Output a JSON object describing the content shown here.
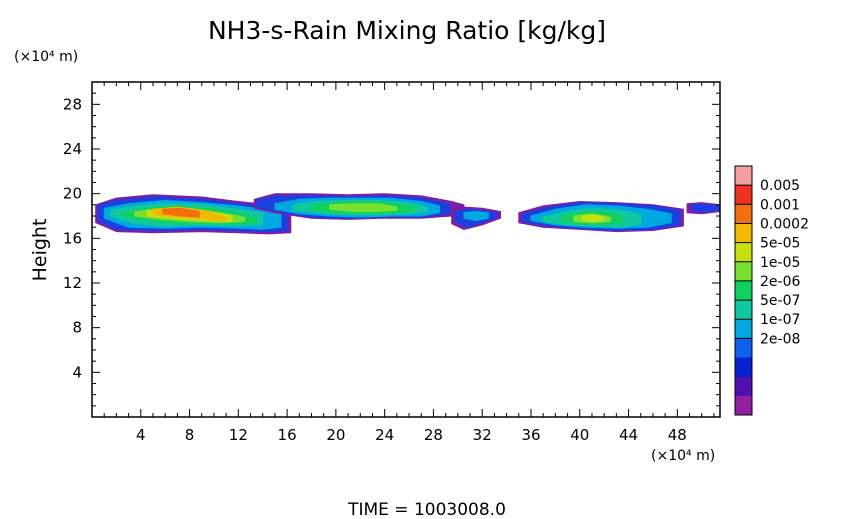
{
  "chart_data": {
    "type": "heatmap",
    "title": "NH3-s-Rain Mixing Ratio [kg/kg]",
    "xlabel": "",
    "ylabel": "Height",
    "x_unit": "(×10⁴ m)",
    "y_unit": "(×10⁴ m)",
    "xlim": [
      0,
      51.5
    ],
    "ylim": [
      0,
      30
    ],
    "xticks": [
      4,
      8,
      12,
      16,
      20,
      24,
      28,
      32,
      36,
      40,
      44,
      48
    ],
    "yticks": [
      4,
      8,
      12,
      16,
      20,
      24,
      28
    ],
    "footer": "TIME = 1003008.0",
    "colorbar": {
      "labels": [
        "0.005",
        "0.001",
        "0.0002",
        "5e-05",
        "1e-05",
        "2e-06",
        "5e-07",
        "1e-07",
        "2e-08"
      ],
      "colors": [
        "#f4a0a0",
        "#f03020",
        "#f07010",
        "#f5b800",
        "#c8e010",
        "#78e030",
        "#10d060",
        "#10c8a0",
        "#00a8e0",
        "#1060f0",
        "#0820d0",
        "#5010b0",
        "#9020a0"
      ]
    },
    "contours": [
      {
        "level": "2e-08",
        "color": "#7a20a8",
        "x": [
          0.3,
          2,
          5,
          9,
          12,
          14.5,
          16.3
        ],
        "y_top": [
          19.0,
          19.6,
          19.9,
          19.7,
          19.3,
          19.0,
          18.8
        ],
        "y_bottom": [
          17.4,
          16.6,
          16.5,
          16.6,
          16.5,
          16.4,
          16.5
        ]
      },
      {
        "level": "1e-07",
        "color": "#1a40e0",
        "x": [
          0.5,
          2,
          5,
          9,
          12,
          14.5,
          16
        ],
        "y_top": [
          18.9,
          19.4,
          19.7,
          19.5,
          19.1,
          18.8,
          18.6
        ],
        "y_bottom": [
          17.6,
          16.8,
          16.7,
          16.8,
          16.7,
          16.6,
          16.7
        ]
      },
      {
        "level": "5e-07",
        "color": "#00a8e0",
        "x": [
          1,
          3,
          6,
          9,
          12,
          14,
          15.5
        ],
        "y_top": [
          18.7,
          19.1,
          19.4,
          19.2,
          18.9,
          18.6,
          18.3
        ],
        "y_bottom": [
          17.8,
          17.0,
          16.9,
          17.0,
          16.9,
          16.8,
          17.0
        ]
      },
      {
        "level": "2e-06",
        "color": "#10c8a0",
        "x": [
          1.5,
          3.5,
          6,
          9,
          12,
          14
        ],
        "y_top": [
          18.5,
          18.9,
          19.1,
          19.0,
          18.6,
          18.3
        ],
        "y_bottom": [
          18.0,
          17.3,
          17.1,
          17.2,
          17.1,
          17.2
        ]
      },
      {
        "level": "1e-05",
        "color": "#10d060",
        "x": [
          2.5,
          4.5,
          7,
          9.5,
          12,
          13.5
        ],
        "y_top": [
          18.3,
          18.7,
          18.9,
          18.7,
          18.3,
          17.9
        ],
        "y_bottom": [
          18.0,
          17.6,
          17.3,
          17.3,
          17.3,
          17.4
        ]
      },
      {
        "level": "5e-05",
        "color": "#78e030",
        "x": [
          3.5,
          5.5,
          8,
          10.5,
          12.5
        ],
        "y_top": [
          18.4,
          18.6,
          18.7,
          18.3,
          17.9
        ],
        "y_bottom": [
          18.0,
          17.7,
          17.5,
          17.4,
          17.5
        ]
      },
      {
        "level": "1e-04",
        "color": "#c8e010",
        "x": [
          4.5,
          6.5,
          9,
          11.5
        ],
        "y_top": [
          18.5,
          18.7,
          18.5,
          18.0
        ],
        "y_bottom": [
          18.0,
          17.8,
          17.6,
          17.5
        ]
      },
      {
        "level": "0.0002",
        "color": "#f5b800",
        "x": [
          5,
          7,
          9.5,
          11
        ],
        "y_top": [
          18.6,
          18.8,
          18.4,
          17.9
        ],
        "y_bottom": [
          18.1,
          17.9,
          17.7,
          17.6
        ]
      },
      {
        "level": "5e-04",
        "color": "#f07010",
        "x": [
          5.8,
          7.2,
          8.8
        ],
        "y_top": [
          18.6,
          18.7,
          18.4
        ],
        "y_bottom": [
          18.2,
          18.0,
          17.9
        ]
      },
      {
        "level": "2e-08",
        "color": "#7a20a8",
        "x": [
          13.3,
          15,
          18,
          21,
          24,
          27,
          29.5,
          30.5
        ],
        "y_top": [
          19.5,
          20.0,
          20.0,
          19.9,
          20.0,
          19.8,
          19.3,
          19.0
        ],
        "y_bottom": [
          18.7,
          18.3,
          17.8,
          17.7,
          17.8,
          17.8,
          18.0,
          18.3
        ]
      },
      {
        "level": "1e-07",
        "color": "#1a40e0",
        "x": [
          13.5,
          15.2,
          18,
          21,
          24,
          27,
          29.3
        ],
        "y_top": [
          19.4,
          19.8,
          19.8,
          19.7,
          19.8,
          19.6,
          19.1
        ],
        "y_bottom": [
          18.8,
          18.4,
          17.9,
          17.8,
          17.9,
          17.9,
          18.2
        ]
      },
      {
        "level": "5e-07",
        "color": "#00a8e0",
        "x": [
          15,
          17,
          19.5,
          22,
          24.5,
          27,
          28.5
        ],
        "y_top": [
          19.1,
          19.5,
          19.6,
          19.6,
          19.6,
          19.3,
          18.9
        ],
        "y_bottom": [
          18.6,
          18.2,
          18.0,
          17.9,
          18.0,
          18.0,
          18.3
        ]
      },
      {
        "level": "2e-06",
        "color": "#10c8a0",
        "x": [
          16.5,
          18.5,
          21,
          23.5,
          26,
          27.5
        ],
        "y_top": [
          19.0,
          19.3,
          19.4,
          19.4,
          19.2,
          18.8
        ],
        "y_bottom": [
          18.5,
          18.3,
          18.1,
          18.1,
          18.2,
          18.4
        ]
      },
      {
        "level": "1e-05",
        "color": "#10d060",
        "x": [
          18,
          20,
          22.5,
          25,
          26.5
        ],
        "y_top": [
          19.0,
          19.2,
          19.3,
          19.1,
          18.8
        ],
        "y_bottom": [
          18.5,
          18.3,
          18.2,
          18.3,
          18.4
        ]
      },
      {
        "level": "5e-05",
        "color": "#78e030",
        "x": [
          19.5,
          21.5,
          23.5,
          25
        ],
        "y_top": [
          19.0,
          19.1,
          19.1,
          18.8
        ],
        "y_bottom": [
          18.6,
          18.4,
          18.4,
          18.5
        ]
      },
      {
        "level": "2e-08",
        "color": "#7a20a8",
        "x": [
          29.5,
          30.5,
          32,
          33.5
        ],
        "y_top": [
          18.5,
          18.8,
          18.7,
          18.4
        ],
        "y_bottom": [
          17.3,
          16.8,
          17.2,
          17.8
        ]
      },
      {
        "level": "1e-07",
        "color": "#1a40e0",
        "x": [
          29.8,
          30.8,
          32,
          33.2
        ],
        "y_top": [
          18.4,
          18.6,
          18.5,
          18.3
        ],
        "y_bottom": [
          17.5,
          17.0,
          17.4,
          17.9
        ]
      },
      {
        "level": "5e-07",
        "color": "#00a8e0",
        "x": [
          30.5,
          31.5,
          32.5
        ],
        "y_top": [
          18.3,
          18.4,
          18.3
        ],
        "y_bottom": [
          17.8,
          17.6,
          17.8
        ]
      },
      {
        "level": "2e-08",
        "color": "#7a20a8",
        "x": [
          35,
          37,
          40,
          43,
          46,
          48.5
        ],
        "y_top": [
          18.3,
          18.9,
          19.3,
          19.2,
          19.0,
          18.6
        ],
        "y_bottom": [
          17.4,
          17.0,
          16.8,
          16.6,
          16.7,
          17.1
        ]
      },
      {
        "level": "1e-07",
        "color": "#1a40e0",
        "x": [
          35.3,
          37.5,
          40,
          43,
          46,
          48.2
        ],
        "y_top": [
          18.2,
          18.8,
          19.2,
          19.1,
          18.9,
          18.5
        ],
        "y_bottom": [
          17.5,
          17.1,
          16.9,
          16.7,
          16.8,
          17.2
        ]
      },
      {
        "level": "5e-07",
        "color": "#00a8e0",
        "x": [
          36,
          38,
          40.5,
          43,
          45.5,
          47.5
        ],
        "y_top": [
          18.0,
          18.6,
          19.0,
          18.9,
          18.6,
          18.2
        ],
        "y_bottom": [
          17.6,
          17.2,
          17.0,
          16.9,
          17.0,
          17.4
        ]
      },
      {
        "level": "2e-06",
        "color": "#10c8a0",
        "x": [
          37,
          39,
          41,
          43.5,
          45
        ],
        "y_top": [
          17.9,
          18.4,
          18.7,
          18.5,
          18.1
        ],
        "y_bottom": [
          17.5,
          17.2,
          17.1,
          17.0,
          17.3
        ]
      },
      {
        "level": "1e-05",
        "color": "#10d060",
        "x": [
          38.5,
          40,
          42,
          43.5
        ],
        "y_top": [
          18.0,
          18.3,
          18.4,
          18.0
        ],
        "y_bottom": [
          17.5,
          17.3,
          17.2,
          17.4
        ]
      },
      {
        "level": "5e-05",
        "color": "#78e030",
        "x": [
          39.5,
          41,
          42.5
        ],
        "y_top": [
          18.0,
          18.2,
          17.9
        ],
        "y_bottom": [
          17.5,
          17.4,
          17.5
        ]
      },
      {
        "level": "1e-04",
        "color": "#c8e010",
        "x": [
          40.2,
          41.2,
          42
        ],
        "y_top": [
          18.0,
          18.1,
          17.9
        ],
        "y_bottom": [
          17.6,
          17.5,
          17.6
        ]
      },
      {
        "level": "2e-08",
        "color": "#7a20a8",
        "x": [
          48.8,
          50,
          51.5
        ],
        "y_top": [
          19.1,
          19.2,
          19.0
        ],
        "y_bottom": [
          18.3,
          18.2,
          18.4
        ]
      },
      {
        "level": "1e-07",
        "color": "#1a40e0",
        "x": [
          49.2,
          50.2,
          51.5
        ],
        "y_top": [
          19.0,
          19.0,
          18.9
        ],
        "y_bottom": [
          18.5,
          18.4,
          18.5
        ]
      }
    ]
  }
}
